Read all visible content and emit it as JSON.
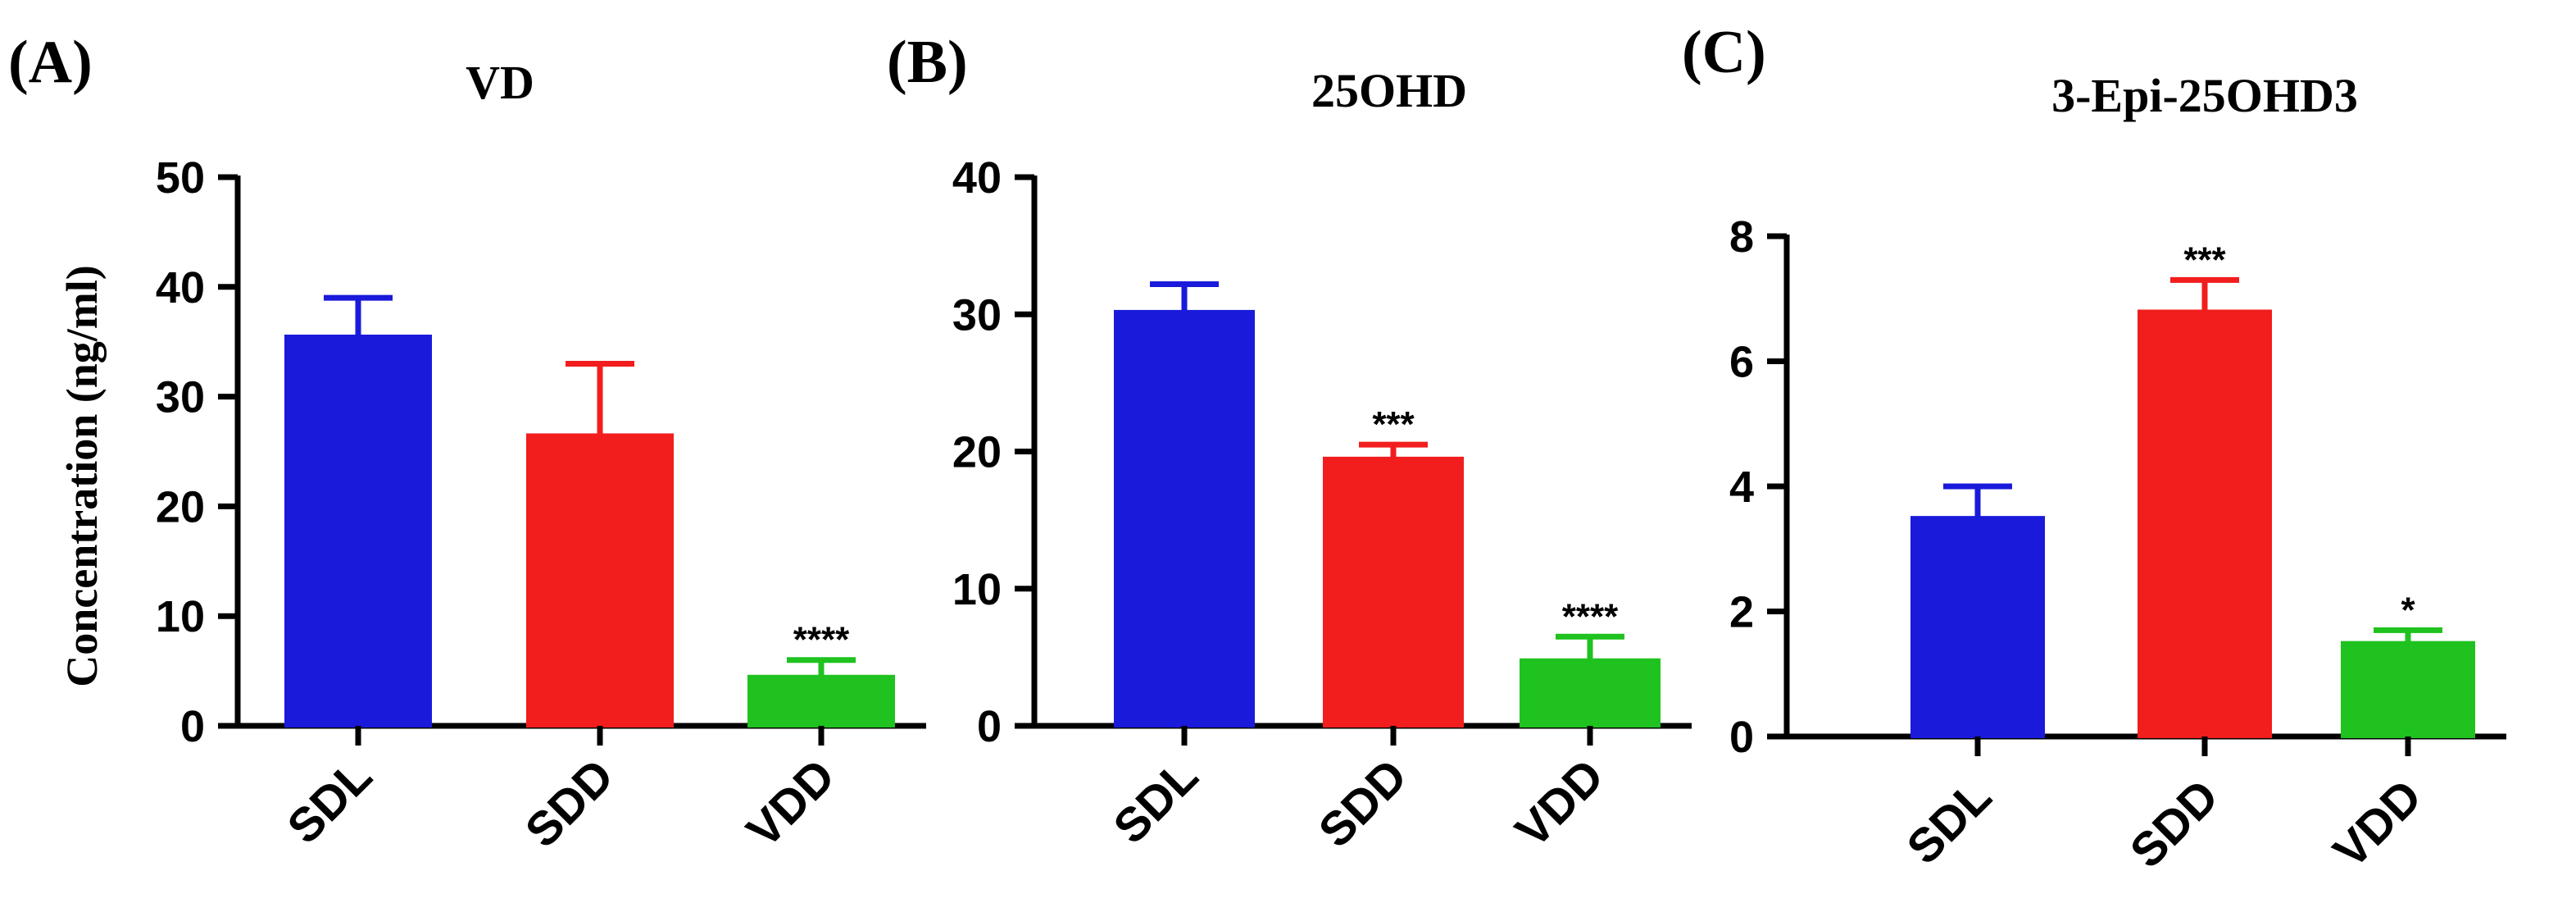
{
  "ylabel": "Concentration (ng/ml)",
  "colors": {
    "SDL": "#1a1adb",
    "SDD": "#f21d1d",
    "VDD": "#1fc21f",
    "axis": "#000000"
  },
  "chart_data": [
    {
      "type": "bar",
      "panel_label": "(A)",
      "title": "VD",
      "categories": [
        "SDL",
        "SDD",
        "VDD"
      ],
      "values": [
        35.5,
        26.5,
        4.5
      ],
      "errors": [
        3.5,
        6.5,
        1.5
      ],
      "significance": [
        "",
        "",
        "****"
      ],
      "ylim": [
        0,
        50
      ],
      "yticks": [
        0,
        10,
        20,
        30,
        40,
        50
      ],
      "ylabel": "Concentration (ng/ml)",
      "xlabel": ""
    },
    {
      "type": "bar",
      "panel_label": "(B)",
      "title": "25OHD",
      "categories": [
        "SDL",
        "SDD",
        "VDD"
      ],
      "values": [
        30.2,
        19.5,
        4.8
      ],
      "errors": [
        2.0,
        1.0,
        1.7
      ],
      "significance": [
        "",
        "***",
        "****"
      ],
      "ylim": [
        0,
        40
      ],
      "yticks": [
        0,
        10,
        20,
        30,
        40
      ],
      "ylabel": "",
      "xlabel": ""
    },
    {
      "type": "bar",
      "panel_label": "(C)",
      "title": "3-Epi-25OHD3",
      "categories": [
        "SDL",
        "SDD",
        "VDD"
      ],
      "values": [
        3.5,
        6.8,
        1.5
      ],
      "errors": [
        0.5,
        0.5,
        0.2
      ],
      "significance": [
        "",
        "***",
        "*"
      ],
      "ylim": [
        0,
        8
      ],
      "yticks": [
        0,
        2,
        4,
        6,
        8
      ],
      "ylabel": "",
      "xlabel": ""
    }
  ]
}
